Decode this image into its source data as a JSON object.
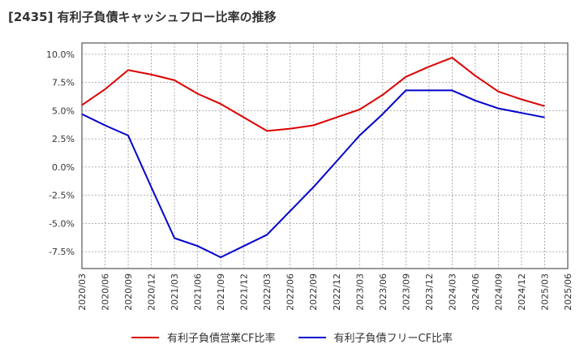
{
  "title": "[2435]  有利子負債キャッシュフロー比率の推移",
  "colors": {
    "operating": "#dd0000",
    "free": "#0000cc",
    "grid": "#999999"
  },
  "chart_data": {
    "type": "line",
    "x": [
      "2020/03",
      "2020/06",
      "2020/09",
      "2020/12",
      "2021/03",
      "2021/06",
      "2021/09",
      "2021/12",
      "2022/03",
      "2022/06",
      "2022/09",
      "2022/12",
      "2023/03",
      "2023/06",
      "2023/09",
      "2023/12",
      "2024/03",
      "2024/06",
      "2024/09",
      "2024/12",
      "2025/03",
      "2025/06"
    ],
    "yticks": [
      "10.0%",
      "7.5%",
      "5.0%",
      "2.5%",
      "0.0%",
      "-2.5%",
      "-5.0%",
      "-7.5%"
    ],
    "ylim": [
      -9.0,
      11.0
    ],
    "series": [
      {
        "name": "有利子負債営業CF比率",
        "color": "#dd0000",
        "values": [
          5.5,
          6.9,
          8.6,
          8.2,
          7.7,
          6.5,
          5.6,
          4.4,
          3.2,
          3.4,
          3.7,
          4.4,
          5.1,
          6.4,
          8.0,
          8.9,
          9.7,
          8.1,
          6.7,
          6.0,
          5.4,
          null
        ]
      },
      {
        "name": "有利子負債フリーCF比率",
        "color": "#0000cc",
        "values": [
          4.7,
          3.7,
          2.8,
          -1.8,
          -6.3,
          -7.0,
          -8.0,
          -7.0,
          -6.0,
          -3.9,
          -1.8,
          0.5,
          2.8,
          4.7,
          6.8,
          6.8,
          6.8,
          5.9,
          5.2,
          4.8,
          4.4,
          null
        ]
      }
    ],
    "grid": true,
    "legend": "bottom"
  }
}
